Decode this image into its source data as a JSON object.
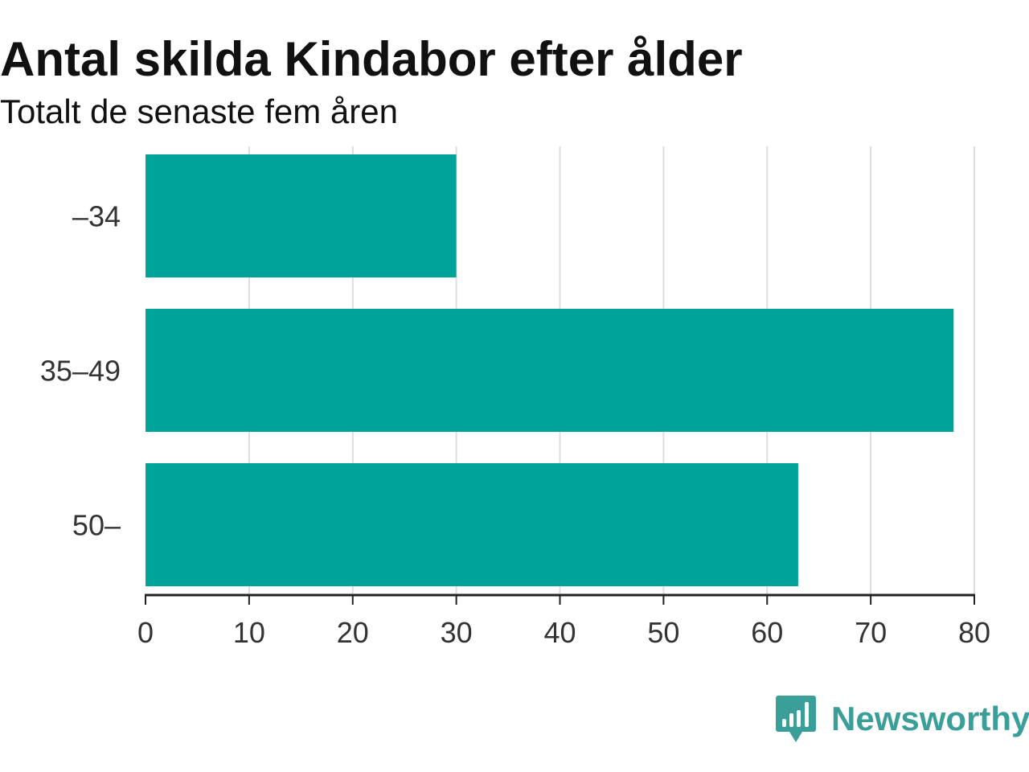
{
  "title": "Antal skilda Kindabor efter ålder",
  "subtitle": "Totalt de senaste fem åren",
  "brand": {
    "name": "Newsworthy",
    "color": "#3a9e99",
    "icon": "bar-chart-speech-bubble-icon"
  },
  "chart_data": {
    "type": "bar",
    "orientation": "horizontal",
    "categories": [
      "–34",
      "35–49",
      "50–"
    ],
    "values": [
      30,
      78,
      63
    ],
    "xlim": [
      0,
      80
    ],
    "xticks": [
      0,
      10,
      20,
      30,
      40,
      50,
      60,
      70,
      80
    ],
    "grid": true,
    "legend": false,
    "bar_color": "#00a39a",
    "grid_color": "#dddddd",
    "axis_color": "#222222"
  }
}
